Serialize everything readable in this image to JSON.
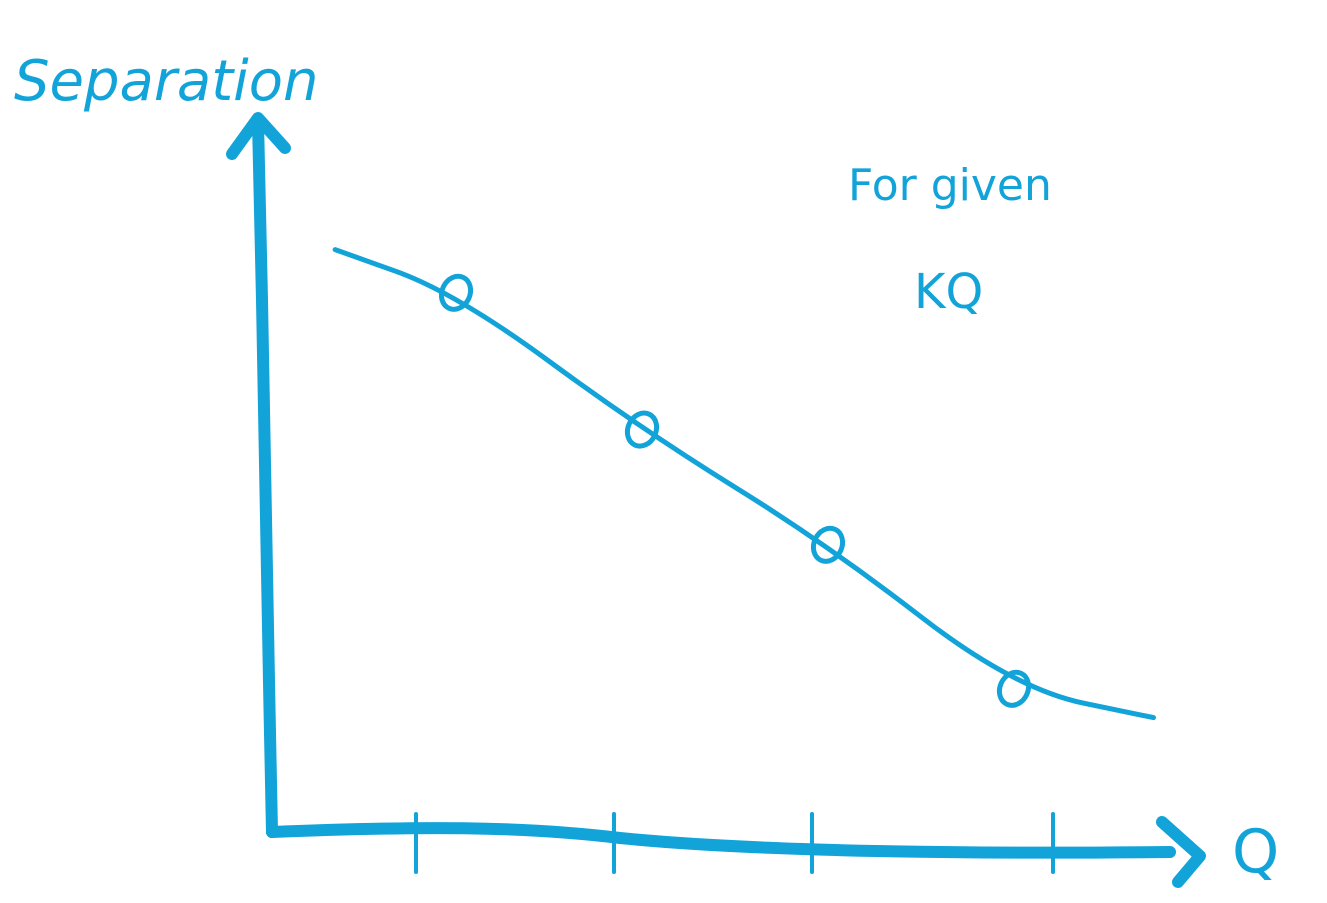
{
  "chart_data": {
    "type": "line",
    "title": "",
    "xlabel": "Q",
    "ylabel": "Separation",
    "annotation_lines": [
      "For given",
      "KQ"
    ],
    "x_ticks": [
      1,
      2,
      3,
      4
    ],
    "xlim": [
      0,
      5
    ],
    "ylim": [
      0,
      10
    ],
    "series": [
      {
        "curve": {
          "x": [
            0.35,
            1.0,
            2.0,
            3.0,
            4.0,
            4.75
          ],
          "y": [
            8.2,
            7.6,
            5.7,
            4.1,
            2.1,
            1.7
          ]
        },
        "markers": {
          "x": [
            1,
            2,
            3,
            4
          ],
          "y": [
            7.6,
            5.7,
            4.1,
            2.1
          ]
        }
      }
    ],
    "color": "#12a3d9",
    "grid": false,
    "legend": "none"
  }
}
